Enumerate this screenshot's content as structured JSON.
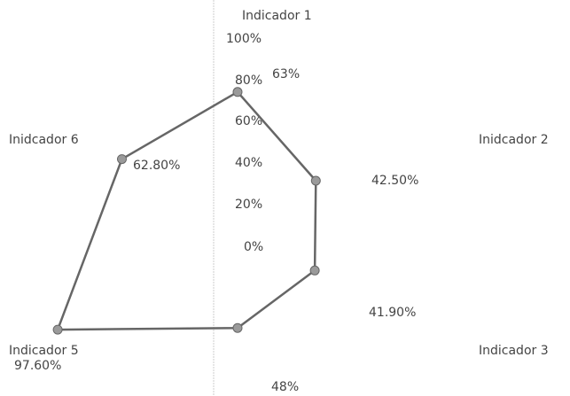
{
  "chart_data": {
    "type": "radar",
    "title": "",
    "categories": [
      "Indicador 1",
      "Inidcador 2",
      "Indicador 3",
      "48%",
      "Indicador 5",
      "Inidcador 6"
    ],
    "values": [
      63,
      42.5,
      41.9,
      48,
      97.6,
      62.8
    ],
    "data_labels": [
      "63%",
      "42.50%",
      "41.90%",
      "48%",
      "97.60%",
      "62.80%"
    ],
    "radial_axis": {
      "range": [
        0,
        100
      ],
      "ticks": [
        "0%",
        "20%",
        "40%",
        "60%",
        "80%",
        "100%"
      ]
    },
    "grid": false,
    "legend": "none",
    "colors": {
      "series": "#666666",
      "marker": "#9a9a9a",
      "text": "#444444",
      "axis": "#cccccc"
    }
  }
}
